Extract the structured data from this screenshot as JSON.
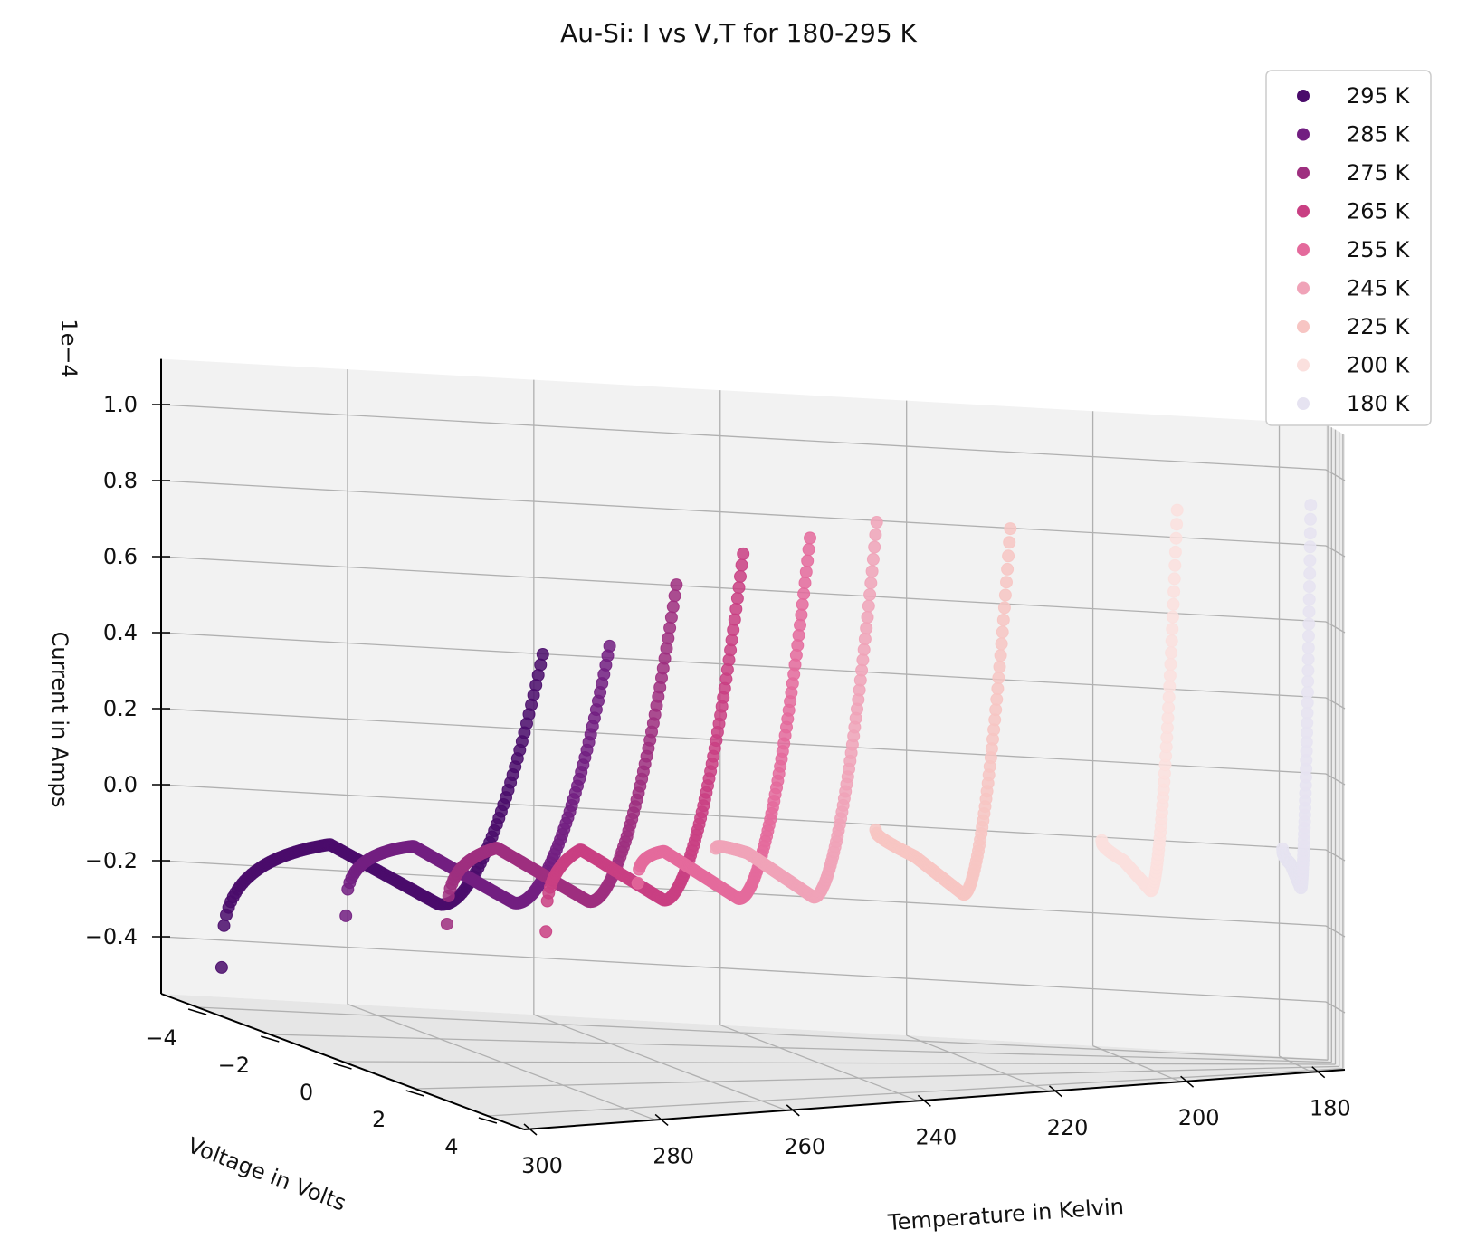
{
  "chart_data": {
    "type": "scatter",
    "projection": "3d",
    "title": "Au-Si: I vs V,T for 180-295 K",
    "xlabel": "Voltage in Volts",
    "ylabel": "Temperature in Kelvin",
    "zlabel": "Current in Amps",
    "z_offset_text": "1e−4",
    "xlim": [
      -5,
      5
    ],
    "ylim": [
      175,
      300
    ],
    "zlim": [
      -0.55,
      1.12
    ],
    "x_ticks": [
      "−4",
      "−2",
      "0",
      "2",
      "4"
    ],
    "y_ticks": [
      "300",
      "280",
      "260",
      "240",
      "220",
      "200",
      "180"
    ],
    "z_ticks": [
      "−0.4",
      "−0.2",
      "0.0",
      "0.2",
      "0.4",
      "0.6",
      "0.8",
      "1.0"
    ],
    "grid": true,
    "legend_position": "top-right",
    "series": [
      {
        "name": "295 K",
        "T": 295,
        "color": "#4a0c6b",
        "z_min": -0.46,
        "z_end": 0.68,
        "x_start": -4.6
      },
      {
        "name": "285 K",
        "T": 285,
        "color": "#721f81",
        "z_min": -0.28,
        "z_end": 0.69,
        "x_start": -3.6
      },
      {
        "name": "275 K",
        "T": 275,
        "color": "#9e2f7f",
        "z_min": -0.28,
        "z_end": 0.84,
        "x_start": -3.2
      },
      {
        "name": "265 K",
        "T": 265,
        "color": "#c93f83",
        "z_min": -0.28,
        "z_end": 0.91,
        "x_start": -2.8
      },
      {
        "name": "255 K",
        "T": 255,
        "color": "#e46a9c",
        "z_min": -0.14,
        "z_end": 0.94,
        "x_start": -2.6
      },
      {
        "name": "245 K",
        "T": 245,
        "color": "#f0a3b8",
        "z_min": -0.05,
        "z_end": 0.97,
        "x_start": -3.0
      },
      {
        "name": "225 K",
        "T": 225,
        "color": "#f7c5c3",
        "z_min": 0.0,
        "z_end": 0.93,
        "x_start": -4.0
      },
      {
        "name": "200 K",
        "T": 200,
        "color": "#fbe0de",
        "z_min": 0.0,
        "z_end": 0.95,
        "x_start": -4.0
      },
      {
        "name": "180 K",
        "T": 180,
        "color": "#e6e3f1",
        "z_min": 0.0,
        "z_end": 0.94,
        "x_start": -4.0
      }
    ]
  }
}
